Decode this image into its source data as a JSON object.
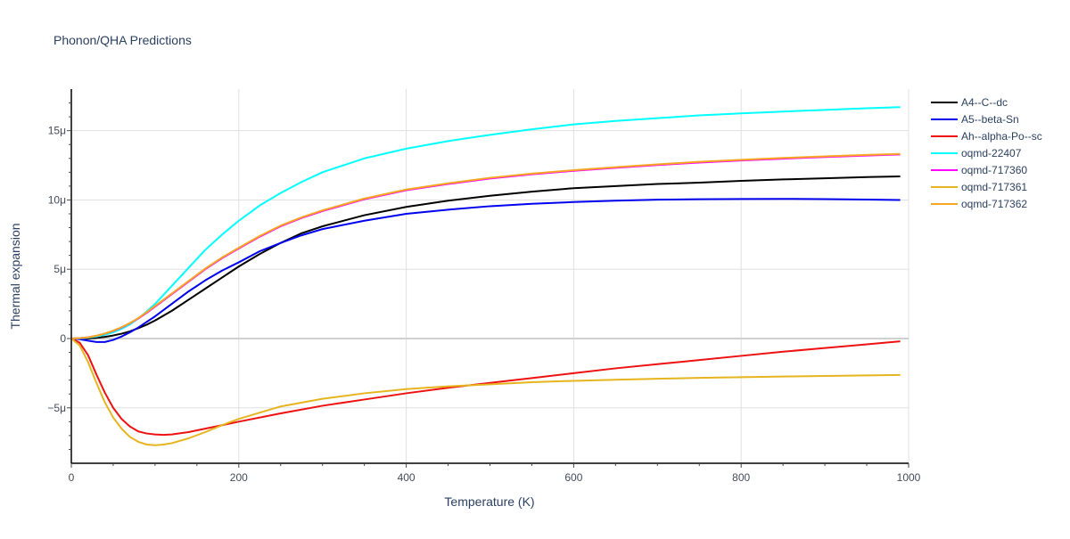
{
  "chart_data": {
    "type": "line",
    "title": "Phonon/QHA Predictions",
    "xlabel": "Temperature (K)",
    "ylabel": "Thermal expansion",
    "xlim": [
      0,
      1000
    ],
    "ylim": [
      -9.0,
      18.0
    ],
    "x_ticks": [
      0,
      200,
      400,
      600,
      800,
      1000
    ],
    "x_tick_labels": [
      "0",
      "200",
      "400",
      "600",
      "800",
      "1000"
    ],
    "y_ticks": [
      -5,
      0,
      5,
      10,
      15
    ],
    "y_tick_labels": [
      "−5μ",
      "0",
      "5μ",
      "10μ",
      "15μ"
    ],
    "grid": true,
    "legend_position": "top-right",
    "series": [
      {
        "name": "A4--C--dc",
        "color": "#000000",
        "x": [
          0,
          10,
          20,
          30,
          40,
          50,
          60,
          70,
          80,
          90,
          100,
          120,
          140,
          160,
          180,
          200,
          225,
          250,
          275,
          300,
          350,
          400,
          450,
          500,
          550,
          600,
          650,
          700,
          750,
          800,
          850,
          900,
          950,
          990
        ],
        "y": [
          0,
          -0.02,
          0.0,
          0.05,
          0.12,
          0.22,
          0.35,
          0.52,
          0.75,
          1.0,
          1.3,
          2.0,
          2.8,
          3.6,
          4.4,
          5.2,
          6.1,
          6.9,
          7.6,
          8.1,
          8.9,
          9.5,
          9.95,
          10.3,
          10.6,
          10.85,
          11.0,
          11.15,
          11.25,
          11.38,
          11.48,
          11.56,
          11.65,
          11.7
        ]
      },
      {
        "name": "A5--beta-Sn",
        "color": "#0000ee",
        "x": [
          0,
          10,
          20,
          30,
          40,
          50,
          60,
          70,
          80,
          90,
          100,
          120,
          140,
          160,
          180,
          200,
          225,
          250,
          275,
          300,
          350,
          400,
          450,
          500,
          550,
          600,
          650,
          700,
          750,
          800,
          850,
          900,
          950,
          990
        ],
        "y": [
          0,
          -0.05,
          -0.15,
          -0.25,
          -0.25,
          -0.1,
          0.15,
          0.45,
          0.8,
          1.2,
          1.6,
          2.5,
          3.4,
          4.2,
          4.9,
          5.5,
          6.3,
          6.9,
          7.45,
          7.9,
          8.5,
          9.0,
          9.3,
          9.55,
          9.72,
          9.85,
          9.95,
          10.02,
          10.05,
          10.07,
          10.08,
          10.06,
          10.03,
          10.0
        ]
      },
      {
        "name": "Ah--alpha-Po--sc",
        "color": "#ee1111",
        "x": [
          0,
          10,
          20,
          30,
          40,
          50,
          60,
          70,
          80,
          90,
          100,
          110,
          120,
          140,
          160,
          180,
          200,
          250,
          300,
          350,
          400,
          450,
          500,
          550,
          600,
          650,
          700,
          750,
          800,
          850,
          900,
          950,
          990
        ],
        "y": [
          0,
          -0.3,
          -1.2,
          -2.6,
          -3.9,
          -5.0,
          -5.8,
          -6.35,
          -6.7,
          -6.85,
          -6.92,
          -6.95,
          -6.92,
          -6.75,
          -6.5,
          -6.25,
          -6.0,
          -5.4,
          -4.85,
          -4.4,
          -3.95,
          -3.55,
          -3.2,
          -2.85,
          -2.5,
          -2.15,
          -1.85,
          -1.55,
          -1.25,
          -0.95,
          -0.68,
          -0.42,
          -0.2
        ]
      },
      {
        "name": "oqmd-22407",
        "color": "#00ffff",
        "x": [
          0,
          10,
          20,
          30,
          40,
          50,
          60,
          70,
          80,
          90,
          100,
          120,
          140,
          160,
          180,
          200,
          225,
          250,
          275,
          300,
          350,
          400,
          450,
          500,
          550,
          600,
          650,
          700,
          750,
          800,
          850,
          900,
          950,
          990
        ],
        "y": [
          0,
          0.02,
          0.06,
          0.14,
          0.27,
          0.45,
          0.7,
          1.02,
          1.45,
          1.95,
          2.5,
          3.8,
          5.1,
          6.4,
          7.5,
          8.5,
          9.6,
          10.5,
          11.3,
          12.0,
          13.0,
          13.7,
          14.25,
          14.7,
          15.1,
          15.45,
          15.7,
          15.9,
          16.1,
          16.25,
          16.38,
          16.5,
          16.62,
          16.7
        ]
      },
      {
        "name": "oqmd-717360",
        "color": "#ff00ff",
        "x": [
          0,
          10,
          20,
          30,
          40,
          50,
          60,
          70,
          80,
          90,
          100,
          120,
          140,
          160,
          180,
          200,
          225,
          250,
          275,
          300,
          350,
          400,
          450,
          500,
          550,
          600,
          650,
          700,
          750,
          800,
          850,
          900,
          950,
          990
        ],
        "y": [
          0,
          0.03,
          0.09,
          0.2,
          0.35,
          0.55,
          0.8,
          1.1,
          1.45,
          1.85,
          2.3,
          3.2,
          4.1,
          5.0,
          5.8,
          6.5,
          7.35,
          8.1,
          8.7,
          9.2,
          10.05,
          10.7,
          11.15,
          11.55,
          11.85,
          12.1,
          12.32,
          12.52,
          12.7,
          12.85,
          12.98,
          13.1,
          13.2,
          13.28
        ]
      },
      {
        "name": "oqmd-717361",
        "color": "#e6b41e",
        "x": [
          0,
          10,
          20,
          30,
          40,
          50,
          60,
          70,
          80,
          90,
          100,
          110,
          120,
          140,
          160,
          180,
          200,
          250,
          300,
          350,
          400,
          450,
          500,
          550,
          600,
          650,
          700,
          750,
          800,
          850,
          900,
          950,
          990
        ],
        "y": [
          0,
          -0.5,
          -1.7,
          -3.2,
          -4.6,
          -5.7,
          -6.5,
          -7.1,
          -7.45,
          -7.65,
          -7.7,
          -7.65,
          -7.55,
          -7.2,
          -6.75,
          -6.25,
          -5.8,
          -4.9,
          -4.35,
          -3.95,
          -3.65,
          -3.45,
          -3.3,
          -3.15,
          -3.05,
          -2.97,
          -2.9,
          -2.84,
          -2.79,
          -2.74,
          -2.7,
          -2.66,
          -2.63
        ]
      },
      {
        "name": "oqmd-717362",
        "color": "#f5a623",
        "x": [
          0,
          10,
          20,
          30,
          40,
          50,
          60,
          70,
          80,
          90,
          100,
          120,
          140,
          160,
          180,
          200,
          225,
          250,
          275,
          300,
          350,
          400,
          450,
          500,
          550,
          600,
          650,
          700,
          750,
          800,
          850,
          900,
          950,
          990
        ],
        "y": [
          0,
          0.03,
          0.09,
          0.2,
          0.36,
          0.57,
          0.82,
          1.12,
          1.48,
          1.9,
          2.35,
          3.25,
          4.15,
          5.05,
          5.85,
          6.55,
          7.4,
          8.15,
          8.75,
          9.25,
          10.1,
          10.75,
          11.2,
          11.6,
          11.9,
          12.15,
          12.37,
          12.57,
          12.75,
          12.9,
          13.03,
          13.15,
          13.25,
          13.32
        ]
      }
    ]
  }
}
